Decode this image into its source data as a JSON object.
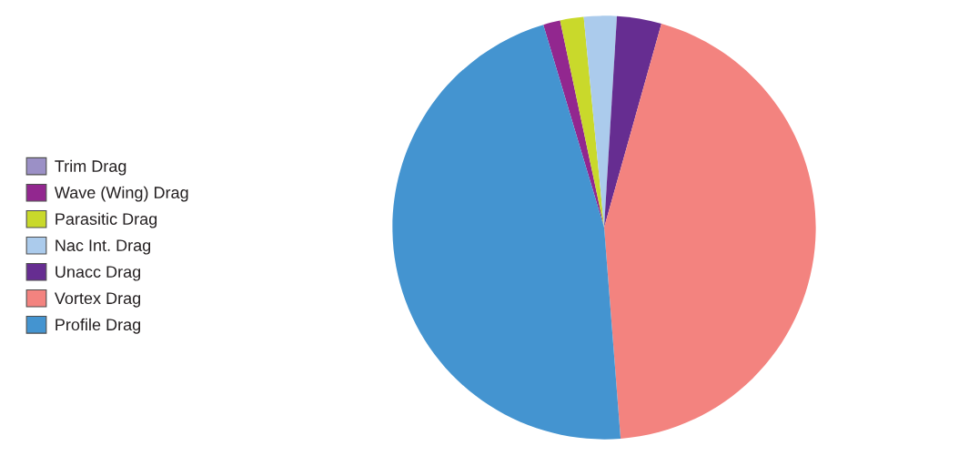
{
  "chart_data": {
    "type": "pie",
    "categories": [
      "Trim Drag",
      "Wave (Wing) Drag",
      "Parasitic Drag",
      "Nac Int. Drag",
      "Unacc Drag",
      "Vortex Drag",
      "Profile Drag"
    ],
    "values": [
      0,
      1.3,
      1.8,
      2.5,
      3.4,
      44.4,
      46.6
    ],
    "colors": [
      "#9b90c6",
      "#92278f",
      "#c9d92b",
      "#abcbec",
      "#662d91",
      "#f3837f",
      "#4494d0"
    ],
    "legend": "left"
  }
}
